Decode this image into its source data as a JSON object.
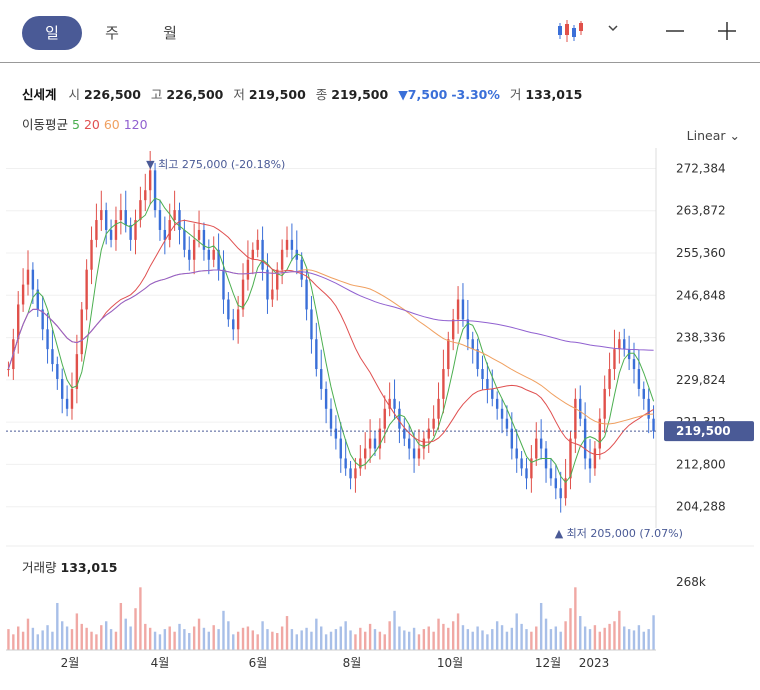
{
  "tabs": [
    {
      "label": "일",
      "active": true
    },
    {
      "label": "주",
      "active": false
    },
    {
      "label": "월",
      "active": false
    }
  ],
  "toolbar": {
    "chart_type_icon": "candlestick-icon",
    "dropdown_icon": "chevron-down-icon",
    "zoom_out_icon": "minus-icon",
    "zoom_in_icon": "plus-icon"
  },
  "quote": {
    "name": "신세계",
    "open_label": "시",
    "open": "226,500",
    "high_label": "고",
    "high": "226,500",
    "low_label": "저",
    "low": "219,500",
    "close_label": "종",
    "close": "219,500",
    "change": "▼7,500",
    "change_pct": "-3.30%",
    "volume_label": "거",
    "volume": "133,015"
  },
  "ma": {
    "label": "이동평균",
    "p5": "5",
    "p20": "20",
    "p60": "60",
    "p120": "120"
  },
  "scale_button": "Linear",
  "volume_panel": {
    "label": "거래량",
    "value": "133,015",
    "axis_tick": "268k"
  },
  "colors": {
    "up": "#e0504a",
    "down": "#3a6fd8",
    "ma5": "#4caf50",
    "ma20": "#e05050",
    "ma60": "#f0a060",
    "ma120": "#9060d0",
    "accent": "#4a5a96"
  },
  "chart_data": {
    "type": "candlestick",
    "y_ticks": [
      "272,384",
      "263,872",
      "255,360",
      "246,848",
      "238,336",
      "229,824",
      "221,312",
      "212,800",
      "204,288"
    ],
    "y_tick_values": [
      272384,
      263872,
      255360,
      246848,
      238336,
      229824,
      221312,
      212800,
      204288
    ],
    "ylim": [
      200000,
      276500
    ],
    "x_ticks": [
      "2월",
      "4월",
      "6월",
      "8월",
      "10월",
      "12월",
      "2023"
    ],
    "high_annotation": "▼ 최고 275,000 (-20.18%)",
    "low_annotation": "▲ 최저 205,000 (7.07%)",
    "last_price": "219,500",
    "close_series": [
      232000,
      238000,
      245000,
      249000,
      252000,
      248000,
      244000,
      240000,
      236000,
      233000,
      230000,
      226000,
      224000,
      228000,
      235000,
      244000,
      252000,
      258000,
      262000,
      264000,
      260000,
      258000,
      262000,
      264000,
      261000,
      258000,
      262000,
      266000,
      268000,
      272000,
      264000,
      260000,
      258000,
      262000,
      264000,
      260000,
      256000,
      254000,
      258000,
      260000,
      256000,
      254000,
      256000,
      252000,
      246000,
      242000,
      240000,
      244000,
      250000,
      254000,
      256000,
      258000,
      252000,
      246000,
      248000,
      252000,
      256000,
      258000,
      256000,
      254000,
      250000,
      244000,
      238000,
      232000,
      228000,
      224000,
      220000,
      218000,
      214000,
      212000,
      210000,
      212000,
      214000,
      216000,
      218000,
      216000,
      220000,
      224000,
      226000,
      224000,
      220000,
      218000,
      216000,
      214000,
      216000,
      218000,
      220000,
      222000,
      226000,
      232000,
      238000,
      242000,
      246000,
      242000,
      238000,
      236000,
      232000,
      230000,
      228000,
      226000,
      224000,
      222000,
      220000,
      216000,
      214000,
      212000,
      210000,
      214000,
      218000,
      216000,
      212000,
      210000,
      208000,
      206000,
      210000,
      218000,
      226000,
      222000,
      214000,
      212000,
      216000,
      222000,
      228000,
      232000,
      236000,
      238000,
      236000,
      234000,
      232000,
      228000,
      226000,
      222000,
      219500
    ],
    "volume_series": [
      80,
      60,
      90,
      70,
      120,
      85,
      60,
      75,
      95,
      70,
      180,
      110,
      90,
      80,
      140,
      100,
      85,
      70,
      60,
      95,
      110,
      80,
      70,
      180,
      120,
      90,
      160,
      240,
      100,
      85,
      70,
      60,
      80,
      90,
      70,
      100,
      80,
      65,
      90,
      120,
      85,
      70,
      95,
      80,
      150,
      110,
      60,
      70,
      85,
      90,
      75,
      60,
      110,
      80,
      70,
      65,
      90,
      130,
      80,
      60,
      75,
      85,
      70,
      120,
      90,
      60,
      70,
      80,
      90,
      110,
      75,
      60,
      85,
      70,
      100,
      80,
      70,
      60,
      110,
      150,
      90,
      75,
      70,
      85,
      60,
      80,
      90,
      70,
      120,
      100,
      85,
      110,
      140,
      95,
      80,
      70,
      90,
      75,
      60,
      80,
      110,
      95,
      70,
      85,
      140,
      100,
      80,
      70,
      90,
      180,
      120,
      80,
      90,
      70,
      110,
      160,
      240,
      130,
      90,
      80,
      95,
      70,
      85,
      100,
      110,
      150,
      90,
      80,
      75,
      95,
      70,
      80,
      133
    ]
  }
}
